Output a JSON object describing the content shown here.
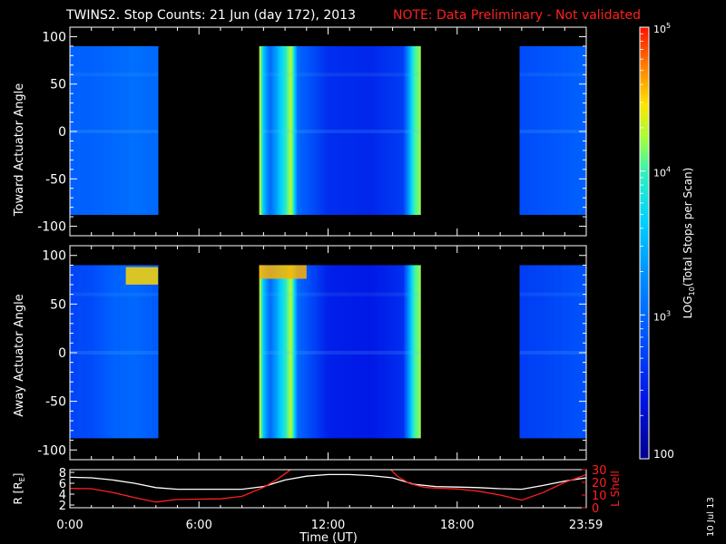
{
  "title": "TWINS2. Stop Counts: 21 Jun (day 172), 2013",
  "note": "NOTE: Data Preliminary - Not validated",
  "date_stamp": "10 Jul 13",
  "colors": {
    "background": "#000000",
    "axes": "#ffffff",
    "note": "#ff2020",
    "lshell": "#ff2020",
    "radius": "#ffffff"
  },
  "chart_data": [
    {
      "type": "heatmap",
      "name": "toward",
      "ylabel": "Toward Actuator Angle",
      "ylim": [
        -110,
        110
      ],
      "yticks": [
        -100,
        -50,
        0,
        50,
        100
      ],
      "xlim": [
        0,
        24
      ],
      "y_coverage": [
        -88,
        90
      ],
      "data_blocks_hours": [
        [
          0.0,
          4.1
        ],
        [
          8.8,
          16.3
        ],
        [
          20.9,
          23.99
        ]
      ],
      "level_profile_log10": [
        [
          0.0,
          2.95
        ],
        [
          1.0,
          2.95
        ],
        [
          2.0,
          3.0
        ],
        [
          3.0,
          3.05
        ],
        [
          4.0,
          3.0
        ],
        [
          8.8,
          4.5
        ],
        [
          9.0,
          3.6
        ],
        [
          9.3,
          3.0
        ],
        [
          10.3,
          4.3
        ],
        [
          10.6,
          3.0
        ],
        [
          12.0,
          2.6
        ],
        [
          14.0,
          2.55
        ],
        [
          15.5,
          2.7
        ],
        [
          16.0,
          4.0
        ],
        [
          16.3,
          4.2
        ],
        [
          20.9,
          2.8
        ],
        [
          22.0,
          2.85
        ],
        [
          23.99,
          2.95
        ]
      ]
    },
    {
      "type": "heatmap",
      "name": "away",
      "ylabel": "Away Actuator Angle",
      "ylim": [
        -110,
        110
      ],
      "yticks": [
        -100,
        -50,
        0,
        50,
        100
      ],
      "xlim": [
        0,
        24
      ],
      "y_coverage": [
        -88,
        90
      ],
      "data_blocks_hours": [
        [
          0.0,
          4.1
        ],
        [
          8.8,
          16.3
        ],
        [
          20.9,
          23.99
        ]
      ],
      "level_profile_log10": [
        [
          0.0,
          2.75
        ],
        [
          1.0,
          2.8
        ],
        [
          2.0,
          2.95
        ],
        [
          3.0,
          3.0
        ],
        [
          4.0,
          2.9
        ],
        [
          8.8,
          4.5
        ],
        [
          9.0,
          3.6
        ],
        [
          9.3,
          3.0
        ],
        [
          10.3,
          4.3
        ],
        [
          10.6,
          3.0
        ],
        [
          12.0,
          2.5
        ],
        [
          14.0,
          2.45
        ],
        [
          15.5,
          2.6
        ],
        [
          16.0,
          4.0
        ],
        [
          16.3,
          4.2
        ],
        [
          20.9,
          2.7
        ],
        [
          22.0,
          2.75
        ],
        [
          23.99,
          2.85
        ]
      ],
      "hot_spots": [
        {
          "hours": [
            2.6,
            4.1
          ],
          "angles": [
            70,
            88
          ],
          "log10": 4.5
        },
        {
          "hours": [
            8.8,
            11.0
          ],
          "angles": [
            76,
            90
          ],
          "log10": 4.6
        }
      ]
    },
    {
      "type": "line",
      "name": "orbit",
      "ylabel_left": "R [R",
      "ylabel_left_sub": "E",
      "ylabel_left_end": "]",
      "ylabel_right": "L Shell",
      "y_left_lim": [
        1.5,
        8.5
      ],
      "y_left_ticks": [
        2,
        4,
        6,
        8
      ],
      "y_right_lim": [
        0,
        30
      ],
      "y_right_ticks": [
        0,
        10,
        20,
        30
      ],
      "series": [
        {
          "axis": "left",
          "color": "#ffffff",
          "x": [
            0,
            1,
            2,
            3,
            4,
            5,
            6,
            7,
            8,
            9,
            10,
            11,
            12,
            13,
            14,
            15,
            16,
            17,
            18,
            19,
            20,
            21,
            22,
            23,
            24
          ],
          "y": [
            7.1,
            7.0,
            6.6,
            6.0,
            5.2,
            4.9,
            4.9,
            4.9,
            4.9,
            5.4,
            6.6,
            7.3,
            7.6,
            7.6,
            7.4,
            7.0,
            5.8,
            5.4,
            5.3,
            5.2,
            5.0,
            4.9,
            5.6,
            6.4,
            7.0
          ]
        },
        {
          "axis": "right",
          "color": "#ff2020",
          "x": [
            0,
            1,
            2,
            3,
            4,
            5,
            6,
            7,
            8,
            9,
            9.6,
            10.1,
            10.4,
            14.8,
            15.2,
            15.8,
            16.5,
            17,
            18,
            19,
            20,
            21,
            22,
            23,
            24
          ],
          "y": [
            15.2,
            15.0,
            12.0,
            8.0,
            4.5,
            6.5,
            6.8,
            7.0,
            9.0,
            16.0,
            22.0,
            28.0,
            32.0,
            32.0,
            25.0,
            19.0,
            16.0,
            15.5,
            14.8,
            13.0,
            10.0,
            6.0,
            12.0,
            20.0,
            26.0
          ]
        }
      ]
    }
  ],
  "colorbar": {
    "label_pre": "LOG",
    "label_sub": "10",
    "label_post": "(Total Stops per Scan)",
    "tick_labels": [
      {
        "base": "10",
        "exp": "5",
        "log10": 5
      },
      {
        "base": "10",
        "exp": "4",
        "log10": 4
      },
      {
        "base": "10",
        "exp": "3",
        "log10": 3
      }
    ],
    "bottom_label": "100",
    "range_log10": [
      2,
      5
    ]
  },
  "x_axis": {
    "label": "Time (UT)",
    "tick_labels": [
      "0:00",
      "6:00",
      "12:00",
      "18:00",
      "23:59"
    ],
    "tick_hours": [
      0,
      6,
      12,
      18,
      23.983
    ]
  }
}
